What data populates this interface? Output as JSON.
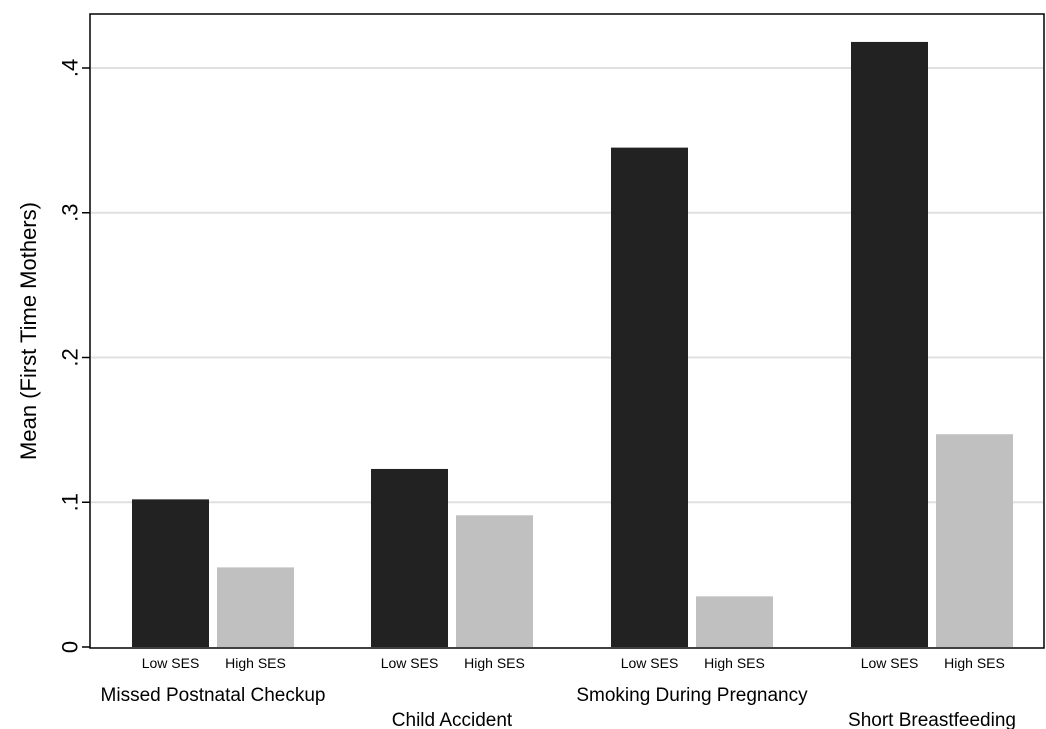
{
  "chart_data": {
    "type": "bar",
    "ylabel": "Mean (First Time Mothers)",
    "ylim": [
      0,
      0.44
    ],
    "yticks": [
      {
        "value": 0,
        "label": "0"
      },
      {
        "value": 0.1,
        "label": ".1"
      },
      {
        "value": 0.2,
        "label": ".2"
      },
      {
        "value": 0.3,
        "label": ".3"
      },
      {
        "value": 0.4,
        "label": ".4"
      }
    ],
    "grid": true,
    "bar_labels": [
      "Low SES",
      "High SES"
    ],
    "colors": {
      "low": "#222222",
      "high": "#c0c0c0",
      "grid": "#e0e0e0"
    },
    "groups": [
      {
        "name": "Missed Postnatal Checkup",
        "values": [
          0.102,
          0.055
        ],
        "label_row": "upper"
      },
      {
        "name": "Child Accident",
        "values": [
          0.123,
          0.091
        ],
        "label_row": "lower"
      },
      {
        "name": "Smoking During Pregnancy",
        "values": [
          0.345,
          0.035
        ],
        "label_row": "upper"
      },
      {
        "name": "Short Breastfeeding",
        "values": [
          0.418,
          0.147
        ],
        "label_row": "lower"
      }
    ]
  }
}
